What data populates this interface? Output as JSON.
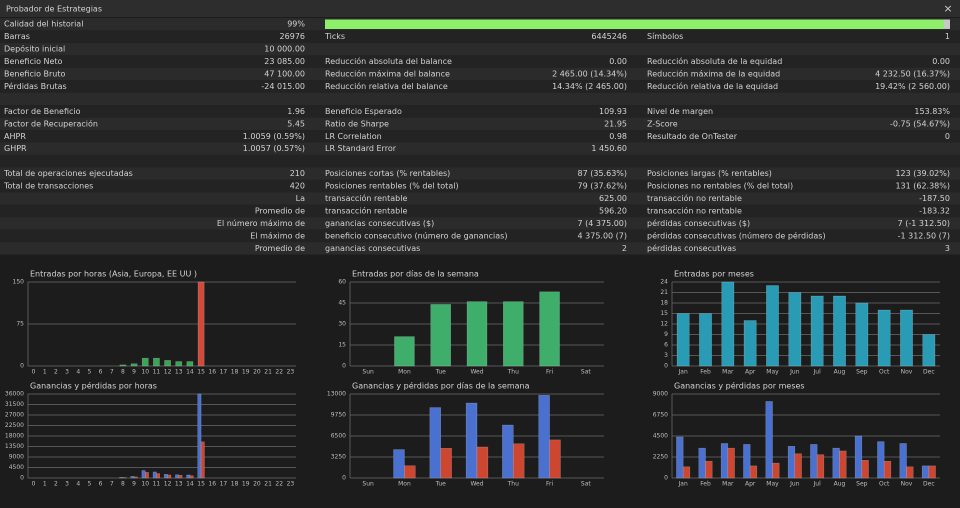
{
  "window": {
    "title": "Probador de Estrategias",
    "close": "×"
  },
  "quality": {
    "label": "Calidad del historial",
    "value": 99,
    "value_label": "99%"
  },
  "groups": [
    [
      {
        "a": [
          "Barras",
          "26976"
        ],
        "b": [
          "Ticks",
          "6445246"
        ],
        "c": [
          "Símbolos",
          "1"
        ]
      },
      {
        "a": [
          "Depósito inicial",
          "10 000.00"
        ]
      },
      {
        "a": [
          "Beneficio Neto",
          "23 085.00"
        ],
        "b": [
          "Reducción absoluta del balance",
          "0.00"
        ],
        "c": [
          "Reducción absoluta de la equidad",
          "0.00"
        ]
      },
      {
        "a": [
          "Beneficio Bruto",
          "47 100.00"
        ],
        "b": [
          "Reducción máxima del balance",
          "2 465.00 (14.34%)"
        ],
        "c": [
          "Reducción máxima de la equidad",
          "4 232.50 (16.37%)"
        ]
      },
      {
        "a": [
          "Pérdidas Brutas",
          "-24 015.00"
        ],
        "b": [
          "Reducción relativa del balance",
          "14.34% (2 465.00)"
        ],
        "c": [
          "Reducción relativa de la equidad",
          "19.42% (2 560.00)"
        ]
      }
    ],
    [
      {
        "a": [
          "Factor de Beneficio",
          "1.96"
        ],
        "b": [
          "Beneficio Esperado",
          "109.93"
        ],
        "c": [
          "Nivel de margen",
          "153.83%"
        ]
      },
      {
        "a": [
          "Factor de Recuperación",
          "5.45"
        ],
        "b": [
          "Ratio de Sharpe",
          "21.95"
        ],
        "c": [
          "Z-Score",
          "-0.75 (54.67%)"
        ]
      },
      {
        "a": [
          "AHPR",
          "1.0059 (0.59%)"
        ],
        "b": [
          "LR Correlation",
          "0.98"
        ],
        "c": [
          "Resultado de OnTester",
          "0"
        ]
      },
      {
        "a": [
          "GHPR",
          "1.0057 (0.57%)"
        ],
        "b": [
          "LR Standard Error",
          "1 450.60"
        ]
      }
    ],
    [
      {
        "a": [
          "Total de operaciones ejecutadas",
          "210"
        ],
        "b": [
          "Posiciones cortas (% rentables)",
          "87 (35.63%)"
        ],
        "c": [
          "Posiciones largas (% rentables)",
          "123 (39.02%)"
        ]
      },
      {
        "a": [
          "Total de transacciones",
          "420"
        ],
        "b": [
          "Posiciones rentables (% del total)",
          "79 (37.62%)"
        ],
        "c": [
          "Posiciones no rentables (% del total)",
          "131 (62.38%)"
        ]
      },
      {
        "a": [
          "La"
        ],
        "b": [
          "transacción rentable",
          "625.00"
        ],
        "c": [
          "transacción no rentable",
          "-187.50"
        ]
      },
      {
        "a": [
          "Promedio de"
        ],
        "b": [
          "transacción rentable",
          "596.20"
        ],
        "c": [
          "transacción no rentable",
          "-183.32"
        ]
      },
      {
        "a": [
          "El número máximo de"
        ],
        "b": [
          "ganancias consecutivas ($)",
          "7 (4 375.00)"
        ],
        "c": [
          "pérdidas consecutivas ($)",
          "7 (-1 312.50)"
        ]
      },
      {
        "a": [
          "El máximo de"
        ],
        "b": [
          "beneficio consecutivo (número de ganancias)",
          "4 375.00 (7)"
        ],
        "c": [
          "pérdidas consecutivas (número de pérdidas)",
          "-1 312.50 (7)"
        ]
      },
      {
        "a": [
          "Promedio de"
        ],
        "b": [
          "ganancias consecutivas",
          "2"
        ],
        "c": [
          "pérdidas consecutivas",
          "3"
        ]
      }
    ]
  ],
  "charts": [
    {
      "type": "bar",
      "title": "Entradas por horas (Asia, Europa, EE UU )",
      "categories": [
        "0",
        "1",
        "2",
        "3",
        "4",
        "5",
        "6",
        "7",
        "8",
        "9",
        "10",
        "11",
        "12",
        "13",
        "14",
        "15",
        "16",
        "17",
        "18",
        "19",
        "20",
        "21",
        "22",
        "23"
      ],
      "ylim": [
        0,
        150
      ],
      "yticks": [
        0,
        75,
        150
      ],
      "grid": true,
      "series": [
        {
          "values": [
            0,
            0,
            0,
            0,
            0,
            0,
            0,
            0,
            2,
            4,
            14,
            14,
            10,
            8,
            8,
            150,
            0,
            0,
            0,
            0,
            0,
            0,
            0,
            0
          ],
          "colors": [
            "#3aa655",
            "#3aa655",
            "#3aa655",
            "#3aa655",
            "#3aa655",
            "#3aa655",
            "#3aa655",
            "#3aa655",
            "#3aa655",
            "#3aa655",
            "#3aa655",
            "#3aa655",
            "#3aa655",
            "#3aa655",
            "#3aa655",
            "#d04a3a",
            "#d04a3a",
            "#d04a3a",
            "#d04a3a",
            "#d04a3a",
            "#d04a3a",
            "#d04a3a",
            "#d04a3a",
            "#d04a3a"
          ]
        }
      ]
    },
    {
      "type": "bar",
      "title": "Entradas por días de la semana",
      "categories": [
        "Sun",
        "Mon",
        "Tue",
        "Wed",
        "Thu",
        "Fri",
        "Sat"
      ],
      "ylim": [
        0,
        60
      ],
      "yticks": [
        0,
        15,
        30,
        45,
        60
      ],
      "grid": true,
      "series": [
        {
          "values": [
            0,
            21,
            44,
            46,
            46,
            53,
            0
          ],
          "color": "#3fae6a"
        }
      ]
    },
    {
      "type": "bar",
      "title": "Entradas por meses",
      "categories": [
        "Jan",
        "Feb",
        "Mar",
        "Apr",
        "May",
        "Jun",
        "Jul",
        "Aug",
        "Sep",
        "Oct",
        "Nov",
        "Dec"
      ],
      "ylim": [
        0,
        24
      ],
      "yticks": [
        0,
        3,
        6,
        9,
        12,
        15,
        18,
        21,
        24
      ],
      "grid": true,
      "series": [
        {
          "values": [
            15,
            15,
            24,
            13,
            23,
            21,
            20,
            20,
            18,
            16,
            16,
            9
          ],
          "color": "#2a9bb5"
        }
      ]
    },
    {
      "type": "bar",
      "title": "Ganancias y pérdidas por horas",
      "categories": [
        "0",
        "1",
        "2",
        "3",
        "4",
        "5",
        "6",
        "7",
        "8",
        "9",
        "10",
        "11",
        "12",
        "13",
        "14",
        "15",
        "16",
        "17",
        "18",
        "19",
        "20",
        "21",
        "22",
        "23"
      ],
      "ylim": [
        0,
        36000
      ],
      "yticks": [
        0,
        4500,
        9000,
        13500,
        18000,
        22500,
        27000,
        31500,
        36000
      ],
      "grid": true,
      "series": [
        {
          "color": "#4a70d0",
          "values": [
            0,
            0,
            0,
            0,
            0,
            0,
            0,
            0,
            300,
            700,
            3200,
            2600,
            1600,
            1400,
            1300,
            36000,
            0,
            0,
            0,
            0,
            0,
            0,
            0,
            0
          ]
        },
        {
          "color": "#cc4630",
          "values": [
            0,
            0,
            0,
            0,
            0,
            0,
            0,
            0,
            200,
            500,
            2400,
            1900,
            1300,
            1200,
            1000,
            15500,
            0,
            0,
            0,
            0,
            0,
            0,
            0,
            0
          ]
        }
      ]
    },
    {
      "type": "bar",
      "title": "Ganancias y pérdidas por días de la semana",
      "categories": [
        "Sun",
        "Mon",
        "Tue",
        "Wed",
        "Thu",
        "Fri",
        "Sat"
      ],
      "ylim": [
        0,
        13000
      ],
      "yticks": [
        0,
        3250,
        6500,
        9750,
        13000
      ],
      "grid": true,
      "series": [
        {
          "color": "#4a70d0",
          "values": [
            0,
            4400,
            10900,
            11600,
            8200,
            12800,
            0
          ]
        },
        {
          "color": "#cc4630",
          "values": [
            0,
            1900,
            4600,
            4800,
            5300,
            5900,
            0
          ]
        }
      ]
    },
    {
      "type": "bar",
      "title": "Ganancias y pérdidas por meses",
      "categories": [
        "Jan",
        "Feb",
        "Mar",
        "Apr",
        "May",
        "Jun",
        "Jul",
        "Aug",
        "Sep",
        "Oct",
        "Nov",
        "Dec"
      ],
      "ylim": [
        0,
        9000
      ],
      "yticks": [
        0,
        2250,
        4500,
        6750,
        9000
      ],
      "grid": true,
      "series": [
        {
          "color": "#4a70d0",
          "values": [
            4400,
            3200,
            3700,
            3600,
            8200,
            3400,
            3600,
            3200,
            4500,
            3900,
            3700,
            1300
          ]
        },
        {
          "color": "#cc4630",
          "values": [
            1200,
            1800,
            3200,
            1300,
            1600,
            2600,
            2500,
            2900,
            1900,
            1800,
            1200,
            1300
          ]
        }
      ]
    }
  ]
}
